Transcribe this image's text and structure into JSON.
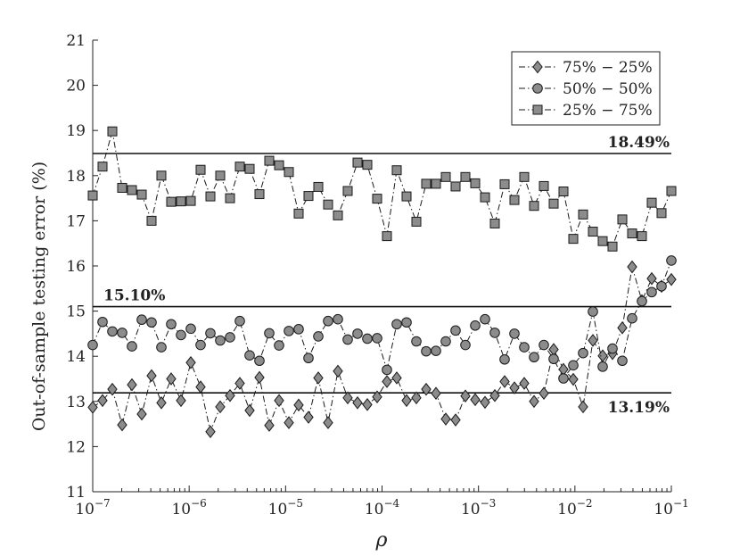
{
  "chart_data": {
    "type": "line",
    "xscale": "log",
    "xlim": [
      1e-07,
      0.1
    ],
    "ylim": [
      11,
      21
    ],
    "xlabel": "ρ",
    "ylabel": "Out-of-sample testing error  (%)",
    "legend_position": "top-right",
    "x_ticks": [
      {
        "value": 1e-07,
        "base": "10",
        "exp": "−7"
      },
      {
        "value": 1e-06,
        "base": "10",
        "exp": "−6"
      },
      {
        "value": 1e-05,
        "base": "10",
        "exp": "−5"
      },
      {
        "value": 0.0001,
        "base": "10",
        "exp": "−4"
      },
      {
        "value": 0.001,
        "base": "10",
        "exp": "−3"
      },
      {
        "value": 0.01,
        "base": "10",
        "exp": "−2"
      },
      {
        "value": 0.1,
        "base": "10",
        "exp": "−1"
      }
    ],
    "y_ticks": [
      11,
      12,
      13,
      14,
      15,
      16,
      17,
      18,
      19,
      20,
      21
    ],
    "reference_lines": [
      {
        "value": 18.49,
        "label": "18.49%",
        "label_side": "right-above"
      },
      {
        "value": 15.1,
        "label": "15.10%",
        "label_side": "left-above"
      },
      {
        "value": 13.19,
        "label": "13.19%",
        "label_side": "right-below"
      }
    ],
    "series": [
      {
        "name": "75% − 25%",
        "marker": "diamond",
        "color": "#8c8c8c",
        "values": [
          12.87,
          13.02,
          13.27,
          12.48,
          13.37,
          12.72,
          13.57,
          12.97,
          13.5,
          13.02,
          13.86,
          13.32,
          12.33,
          12.88,
          13.13,
          13.4,
          12.8,
          13.53,
          12.47,
          13.02,
          12.53,
          12.92,
          12.65,
          13.52,
          12.53,
          13.67,
          13.08,
          12.97,
          12.93,
          13.1,
          13.44,
          13.52,
          13.02,
          13.08,
          13.27,
          13.18,
          12.61,
          12.59,
          13.12,
          13.04,
          12.98,
          13.13,
          13.44,
          13.3,
          13.4,
          13.0,
          13.18,
          14.15,
          13.71,
          13.49,
          12.88,
          14.35,
          14.01,
          14.06,
          14.63,
          15.98,
          15.23,
          15.72,
          15.55,
          15.7
        ]
      },
      {
        "name": "50% − 50%",
        "marker": "circle",
        "color": "#8c8c8c",
        "values": [
          14.25,
          14.76,
          14.55,
          14.52,
          14.22,
          14.81,
          14.75,
          14.2,
          14.71,
          14.47,
          14.61,
          14.25,
          14.51,
          14.35,
          14.42,
          14.78,
          14.02,
          13.9,
          14.51,
          14.24,
          14.56,
          14.6,
          13.96,
          14.44,
          14.78,
          14.82,
          14.37,
          14.5,
          14.39,
          14.4,
          13.7,
          14.71,
          14.75,
          14.33,
          14.11,
          14.12,
          14.33,
          14.57,
          14.25,
          14.68,
          14.82,
          14.52,
          13.93,
          14.5,
          14.2,
          13.98,
          14.25,
          13.94,
          13.51,
          13.8,
          14.07,
          14.99,
          13.77,
          14.17,
          13.9,
          14.84,
          15.22,
          15.42,
          15.55,
          16.12
        ]
      },
      {
        "name": "25% − 75%",
        "marker": "square",
        "color": "#8c8c8c",
        "values": [
          17.56,
          18.2,
          18.98,
          17.73,
          17.68,
          17.58,
          17.0,
          18.0,
          17.42,
          17.43,
          17.44,
          18.13,
          17.54,
          18.0,
          17.5,
          18.2,
          18.15,
          17.59,
          18.33,
          18.23,
          18.08,
          17.16,
          17.55,
          17.75,
          17.36,
          17.12,
          17.66,
          18.29,
          18.24,
          17.49,
          16.66,
          18.12,
          17.54,
          16.98,
          17.82,
          17.82,
          17.97,
          17.76,
          17.97,
          17.83,
          17.52,
          16.94,
          17.81,
          17.46,
          17.97,
          17.33,
          17.77,
          17.38,
          17.65,
          16.6,
          17.14,
          16.76,
          16.55,
          16.43,
          17.03,
          16.72,
          16.66,
          17.4,
          17.17,
          17.66
        ]
      }
    ]
  }
}
